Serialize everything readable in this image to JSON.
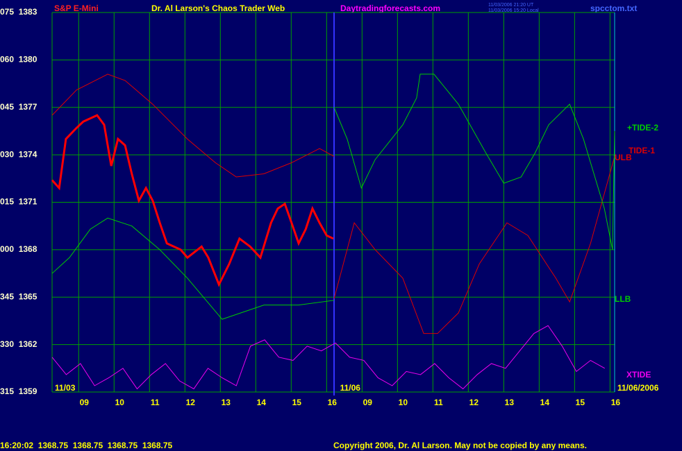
{
  "chart_data": {
    "type": "line",
    "symbol": "S&P E-Mini",
    "title": "Dr. Al Larson's Chaos Trader Web",
    "site": "Daytradingforecasts.com",
    "timestamps": [
      "11/03/2006 21:20 UT",
      "11/03/2006 15:20 Local"
    ],
    "file": "spcctom.txt",
    "quote": "16:20:02  1368.75  1368.75  1368.75  1368.75",
    "copyright": "Copyright 2006, Dr. Al Larson. May not be copied by any means.",
    "day_labels": [
      {
        "value": 0,
        "label": "11/03"
      },
      {
        "value": 8.05,
        "label": "11/06"
      },
      {
        "value": 15.88,
        "label": "11/06/2006"
      }
    ],
    "divider": 7.96,
    "xlim": [
      0,
      15.88
    ],
    "xticks": [
      {
        "value": 0.75,
        "label": "09"
      },
      {
        "value": 1.75,
        "label": "10"
      },
      {
        "value": 2.75,
        "label": "11"
      },
      {
        "value": 3.75,
        "label": "12"
      },
      {
        "value": 4.75,
        "label": "13"
      },
      {
        "value": 5.75,
        "label": "14"
      },
      {
        "value": 6.75,
        "label": "15"
      },
      {
        "value": 7.75,
        "label": "16"
      },
      {
        "value": 8.75,
        "label": "09"
      },
      {
        "value": 9.75,
        "label": "10"
      },
      {
        "value": 10.75,
        "label": "11"
      },
      {
        "value": 11.75,
        "label": "12"
      },
      {
        "value": 12.75,
        "label": "13"
      },
      {
        "value": 13.75,
        "label": "14"
      },
      {
        "value": 14.75,
        "label": "15"
      },
      {
        "value": 15.75,
        "label": "16"
      }
    ],
    "ylim": [
      1359,
      1383
    ],
    "yticks": [
      {
        "value": 1359,
        "label": "315  1359"
      },
      {
        "value": 1362,
        "label": "330  1362"
      },
      {
        "value": 1365,
        "label": "345  1365"
      },
      {
        "value": 1368,
        "label": "000  1368"
      },
      {
        "value": 1371,
        "label": "015  1371"
      },
      {
        "value": 1374,
        "label": "030  1374"
      },
      {
        "value": 1377,
        "label": "045  1377"
      },
      {
        "value": 1380,
        "label": "060  1380"
      },
      {
        "value": 1383,
        "label": "075  1383"
      }
    ],
    "grid": true,
    "series": [
      {
        "color": "#ff0000",
        "x": [
          0,
          0.2,
          0.39,
          0.69,
          0.88,
          1.27,
          1.47,
          1.67,
          1.86,
          2.06,
          2.25,
          2.45,
          2.65,
          2.84,
          3.04,
          3.24,
          3.63,
          3.82,
          4.22,
          4.41,
          4.71,
          5.0,
          5.29,
          5.59,
          5.88,
          6.18,
          6.37,
          6.57,
          6.76,
          6.96,
          7.16,
          7.35,
          7.55,
          7.75,
          7.94
        ],
        "values": [
          1372.4,
          1371.9,
          1375.0,
          1375.7,
          1376.1,
          1376.5,
          1375.9,
          1373.3,
          1375.0,
          1374.6,
          1372.8,
          1371.1,
          1371.9,
          1371.1,
          1369.7,
          1368.4,
          1368.0,
          1367.5,
          1368.2,
          1367.5,
          1365.8,
          1367.1,
          1368.7,
          1368.2,
          1367.5,
          1369.7,
          1370.6,
          1370.9,
          1369.7,
          1368.4,
          1369.3,
          1370.6,
          1369.7,
          1368.9,
          1368.7
        ]
      },
      {
        "name": "ULB",
        "color": "#dd0000",
        "x": [
          0,
          0.69,
          1.57,
          2.06,
          2.84,
          3.82,
          4.61,
          5.2,
          5.98,
          6.76,
          7.55,
          7.96
        ],
        "values": [
          1376.5,
          1378.1,
          1379.1,
          1378.7,
          1377.2,
          1375.0,
          1373.5,
          1372.6,
          1372.8,
          1373.5,
          1374.4,
          1373.9
        ]
      },
      {
        "name": "LLB",
        "color": "#00cc00",
        "x": [
          0,
          0.49,
          1.08,
          1.57,
          2.25,
          3.04,
          3.82,
          4.8,
          5.98,
          6.96,
          7.96
        ],
        "values": [
          1366.5,
          1367.5,
          1369.3,
          1370.0,
          1369.5,
          1368.0,
          1366.2,
          1363.6,
          1364.5,
          1364.5,
          1364.8
        ]
      },
      {
        "name": "TIDE-1",
        "color": "#dd0000",
        "x": [
          7.96,
          8.53,
          9.12,
          9.9,
          10.49,
          10.88,
          11.47,
          12.06,
          12.84,
          13.43,
          14.22,
          14.61,
          15.2,
          15.88
        ],
        "values": [
          1364.9,
          1369.7,
          1368.0,
          1366.2,
          1362.7,
          1362.7,
          1364.0,
          1367.1,
          1369.7,
          1368.9,
          1366.2,
          1364.7,
          1368.4,
          1373.9
        ]
      },
      {
        "name": "+TIDE-2",
        "color": "#00cc00",
        "x": [
          7.96,
          8.33,
          8.73,
          9.12,
          9.9,
          10.29,
          10.39,
          10.78,
          11.47,
          12.25,
          12.75,
          13.24,
          13.63,
          14.02,
          14.61,
          15.0,
          15.59,
          15.82,
          15.88
        ],
        "values": [
          1377.0,
          1375.0,
          1371.9,
          1373.7,
          1375.9,
          1377.6,
          1379.1,
          1379.1,
          1377.2,
          1374.1,
          1372.2,
          1372.6,
          1374.1,
          1375.9,
          1377.2,
          1375.0,
          1370.6,
          1368.0,
          1375.5
        ]
      },
      {
        "name": "XTIDE",
        "color": "#ee00ee",
        "x": [
          0,
          0.4,
          0.8,
          1.2,
          1.6,
          2.0,
          2.4,
          2.8,
          3.2,
          3.6,
          4.0,
          4.4,
          4.8,
          5.2,
          5.6,
          6.0,
          6.4,
          6.8,
          7.2,
          7.6,
          8.0,
          8.4,
          8.8,
          9.2,
          9.6,
          10.0,
          10.4,
          10.8,
          11.2,
          11.6,
          12.0,
          12.4,
          12.8,
          13.2,
          13.6,
          14.0,
          14.4,
          14.8,
          15.2,
          15.6
        ],
        "values": [
          1361.2,
          1360.1,
          1360.8,
          1359.4,
          1359.9,
          1360.5,
          1359.2,
          1360.1,
          1360.8,
          1359.7,
          1359.2,
          1360.5,
          1359.9,
          1359.4,
          1361.9,
          1362.3,
          1361.2,
          1361.0,
          1361.9,
          1361.6,
          1362.1,
          1361.2,
          1361.0,
          1359.9,
          1359.4,
          1360.3,
          1360.1,
          1360.8,
          1359.9,
          1359.2,
          1360.1,
          1360.8,
          1360.5,
          1361.6,
          1362.7,
          1363.2,
          1361.9,
          1360.3,
          1361.0,
          1360.5
        ]
      }
    ]
  }
}
